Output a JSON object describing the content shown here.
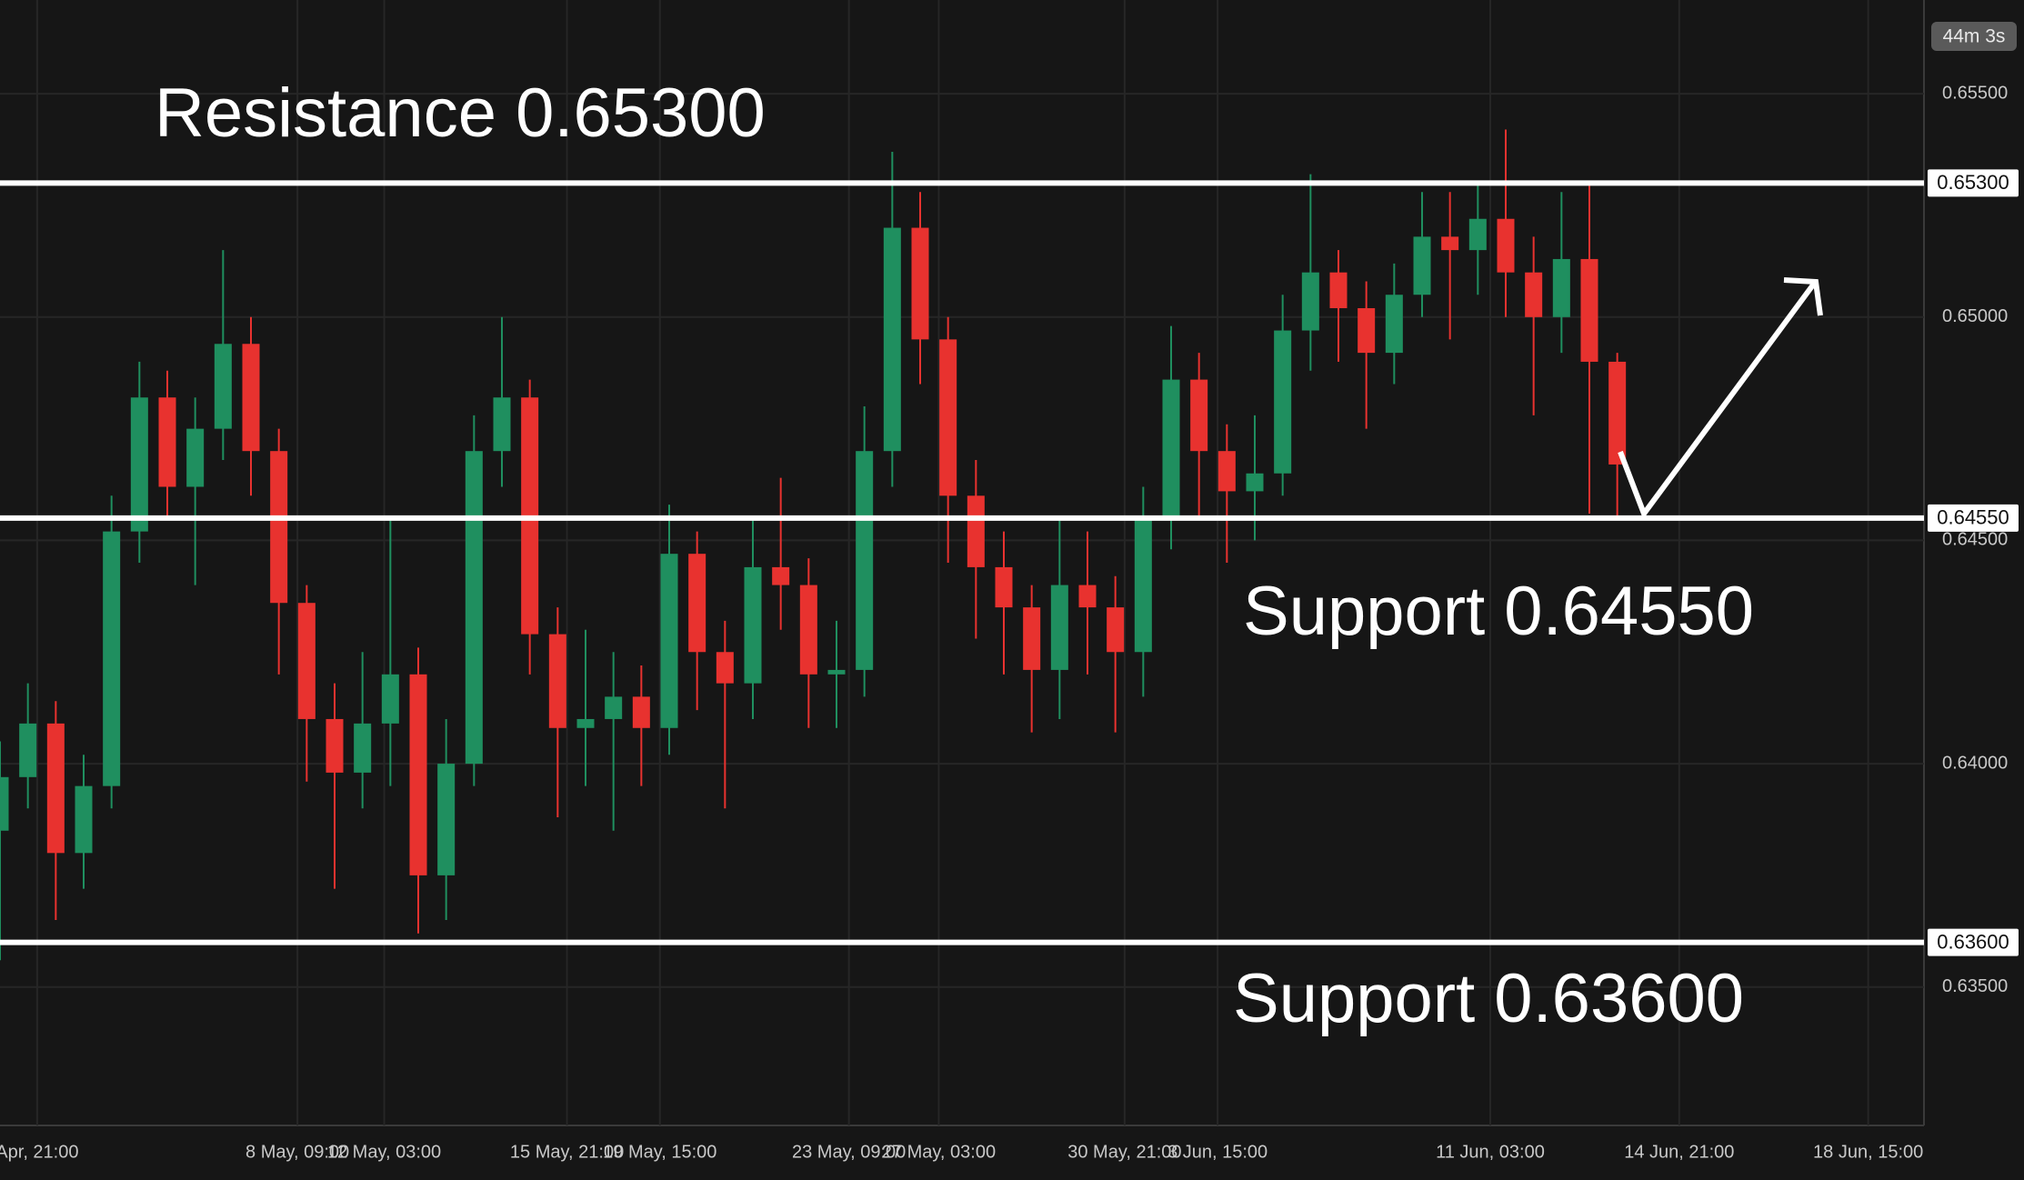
{
  "chart_data": {
    "type": "candlestick",
    "timer": "44m 3s",
    "annotations": [
      "Resistance 0.65300",
      "Support 0.64550",
      "Support 0.63600"
    ],
    "levels": [
      {
        "value": 0.653,
        "label": "0.65300"
      },
      {
        "value": 0.6455,
        "label": "0.64550"
      },
      {
        "value": 0.636,
        "label": "0.63600"
      }
    ],
    "up_color": "#1f8f5f",
    "down_color": "#e8322f",
    "grid": true,
    "ylim": [
      0.6319,
      0.6571
    ],
    "yticks": [
      {
        "value": 0.635,
        "label": "0.63500"
      },
      {
        "value": 0.64,
        "label": "0.64000"
      },
      {
        "value": 0.645,
        "label": "0.64500"
      },
      {
        "value": 0.65,
        "label": "0.65000"
      },
      {
        "value": 0.655,
        "label": "0.65500"
      }
    ],
    "xlim": [
      0,
      621
    ],
    "xticks": [
      {
        "value": 12,
        "label": "Apr, 21:00"
      },
      {
        "value": 96,
        "label": "8 May, 09:00"
      },
      {
        "value": 124,
        "label": "12 May, 03:00"
      },
      {
        "value": 183,
        "label": "15 May, 21:00"
      },
      {
        "value": 213,
        "label": "19 May, 15:00"
      },
      {
        "value": 274,
        "label": "23 May, 09:00"
      },
      {
        "value": 303,
        "label": "27 May, 03:00"
      },
      {
        "value": 363,
        "label": "30 May, 21:00"
      },
      {
        "value": 393,
        "label": "3 Jun, 15:00"
      },
      {
        "value": 481,
        "label": "11 Jun, 03:00"
      },
      {
        "value": 542,
        "label": "14 Jun, 21:00"
      },
      {
        "value": 603,
        "label": "18 Jun, 15:00"
      }
    ],
    "x": [
      0,
      9,
      18,
      27,
      36,
      45,
      54,
      63,
      72,
      81,
      90,
      99,
      108,
      117,
      126,
      135,
      144,
      153,
      162,
      171,
      180,
      189,
      198,
      207,
      216,
      225,
      234,
      243,
      252,
      261,
      270,
      279,
      288,
      297,
      306,
      315,
      324,
      333,
      342,
      351,
      360,
      369,
      378,
      387,
      396,
      405,
      414,
      423,
      432,
      441,
      450,
      459,
      468,
      477,
      486,
      495,
      504,
      513,
      522
    ],
    "candles": [
      [
        0.6385,
        0.6405,
        0.6356,
        0.6397
      ],
      [
        0.6397,
        0.6418,
        0.639,
        0.6409
      ],
      [
        0.6409,
        0.6414,
        0.6365,
        0.638
      ],
      [
        0.638,
        0.6402,
        0.6372,
        0.6395
      ],
      [
        0.6395,
        0.646,
        0.639,
        0.6452
      ],
      [
        0.6452,
        0.649,
        0.6445,
        0.6482
      ],
      [
        0.6482,
        0.6488,
        0.6455,
        0.6462
      ],
      [
        0.6462,
        0.6482,
        0.644,
        0.6475
      ],
      [
        0.6475,
        0.6515,
        0.6468,
        0.6494
      ],
      [
        0.6494,
        0.65,
        0.646,
        0.647
      ],
      [
        0.647,
        0.6475,
        0.642,
        0.6436
      ],
      [
        0.6436,
        0.644,
        0.6396,
        0.641
      ],
      [
        0.641,
        0.6418,
        0.6372,
        0.6398
      ],
      [
        0.6398,
        0.6425,
        0.639,
        0.6409
      ],
      [
        0.6409,
        0.6455,
        0.6395,
        0.642
      ],
      [
        0.642,
        0.6426,
        0.6362,
        0.6375
      ],
      [
        0.6375,
        0.641,
        0.6365,
        0.64
      ],
      [
        0.64,
        0.6478,
        0.6395,
        0.647
      ],
      [
        0.647,
        0.65,
        0.6462,
        0.6482
      ],
      [
        0.6482,
        0.6486,
        0.642,
        0.6429
      ],
      [
        0.6429,
        0.6435,
        0.6388,
        0.6408
      ],
      [
        0.6408,
        0.643,
        0.6395,
        0.641
      ],
      [
        0.641,
        0.6425,
        0.6385,
        0.6415
      ],
      [
        0.6415,
        0.6422,
        0.6395,
        0.6408
      ],
      [
        0.6408,
        0.6458,
        0.6402,
        0.6447
      ],
      [
        0.6447,
        0.6452,
        0.6412,
        0.6425
      ],
      [
        0.6425,
        0.6432,
        0.639,
        0.6418
      ],
      [
        0.6418,
        0.6455,
        0.641,
        0.6444
      ],
      [
        0.6444,
        0.6464,
        0.643,
        0.644
      ],
      [
        0.644,
        0.6446,
        0.6408,
        0.642
      ],
      [
        0.642,
        0.6432,
        0.6408,
        0.6421
      ],
      [
        0.6421,
        0.648,
        0.6415,
        0.647
      ],
      [
        0.647,
        0.6537,
        0.6462,
        0.652
      ],
      [
        0.652,
        0.6528,
        0.6485,
        0.6495
      ],
      [
        0.6495,
        0.65,
        0.6445,
        0.646
      ],
      [
        0.646,
        0.6468,
        0.6428,
        0.6444
      ],
      [
        0.6444,
        0.6452,
        0.642,
        0.6435
      ],
      [
        0.6435,
        0.644,
        0.6407,
        0.6421
      ],
      [
        0.6421,
        0.6455,
        0.641,
        0.644
      ],
      [
        0.644,
        0.6452,
        0.642,
        0.6435
      ],
      [
        0.6435,
        0.6442,
        0.6407,
        0.6425
      ],
      [
        0.6425,
        0.6462,
        0.6415,
        0.6455
      ],
      [
        0.6455,
        0.6498,
        0.6448,
        0.6486
      ],
      [
        0.6486,
        0.6492,
        0.6455,
        0.647
      ],
      [
        0.647,
        0.6476,
        0.6445,
        0.6461
      ],
      [
        0.6461,
        0.6478,
        0.645,
        0.6465
      ],
      [
        0.6465,
        0.6505,
        0.646,
        0.6497
      ],
      [
        0.6497,
        0.6532,
        0.6488,
        0.651
      ],
      [
        0.651,
        0.6515,
        0.649,
        0.6502
      ],
      [
        0.6502,
        0.6508,
        0.6475,
        0.6492
      ],
      [
        0.6492,
        0.6512,
        0.6485,
        0.6505
      ],
      [
        0.6505,
        0.6528,
        0.65,
        0.6518
      ],
      [
        0.6518,
        0.6528,
        0.6495,
        0.6515
      ],
      [
        0.6515,
        0.653,
        0.6505,
        0.6522
      ],
      [
        0.6522,
        0.6542,
        0.65,
        0.651
      ],
      [
        0.651,
        0.6518,
        0.6478,
        0.65
      ],
      [
        0.65,
        0.6528,
        0.6492,
        0.6513
      ],
      [
        0.6513,
        0.653,
        0.6456,
        0.649
      ],
      [
        0.649,
        0.6492,
        0.6455,
        0.6467
      ]
    ]
  }
}
